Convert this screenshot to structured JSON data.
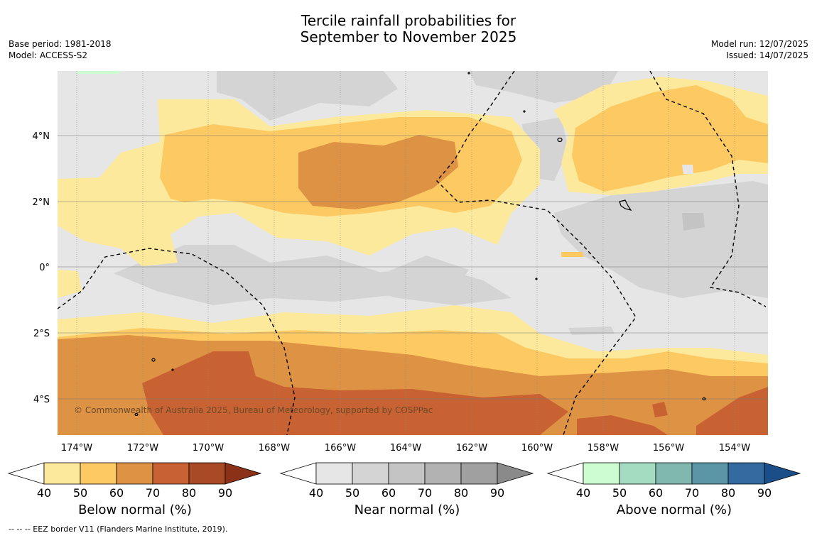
{
  "title_line1": "Tercile rainfall probabilities for",
  "title_line2": "September to November 2025",
  "meta_left": {
    "base_period": "Base period: 1981-2018",
    "model": "Model: ACCESS-S2"
  },
  "meta_right": {
    "model_run": "Model run: 12/07/2025",
    "issued": "Issued: 14/07/2025"
  },
  "copyright": "© Commonwealth of Australia 2025, Bureau of Meteorology, supported by COSPPac",
  "footer": "--  --  -- EEZ border V11 (Flanders Marine Institute, 2019).",
  "axes": {
    "lon_ticks": [
      "174°W",
      "172°W",
      "170°W",
      "168°W",
      "166°W",
      "164°W",
      "162°W",
      "160°W",
      "158°W",
      "156°W",
      "154°W"
    ],
    "lat_ticks": [
      "4°N",
      "2°N",
      "0°",
      "2°S",
      "4°S"
    ]
  },
  "colorbars": [
    {
      "name": "Below normal (%)",
      "ticks": [
        "40",
        "50",
        "60",
        "70",
        "80",
        "90"
      ],
      "colors": [
        "#ffffff",
        "#fde99b",
        "#fdc962",
        "#de9244",
        "#c96232",
        "#a94a26",
        "#8a3117"
      ]
    },
    {
      "name": "Near normal (%)",
      "ticks": [
        "40",
        "50",
        "60",
        "70",
        "80",
        "90"
      ],
      "colors": [
        "#ffffff",
        "#e6e6e6",
        "#d4d4d4",
        "#c4c4c4",
        "#b2b2b2",
        "#a0a0a0",
        "#8a8a8a"
      ]
    },
    {
      "name": "Above normal (%)",
      "ticks": [
        "40",
        "50",
        "60",
        "70",
        "80",
        "90"
      ],
      "colors": [
        "#ffffff",
        "#ccfcd0",
        "#a3dcc0",
        "#80b8b0",
        "#5a96a6",
        "#336aa0",
        "#1a4e88"
      ]
    }
  ]
}
